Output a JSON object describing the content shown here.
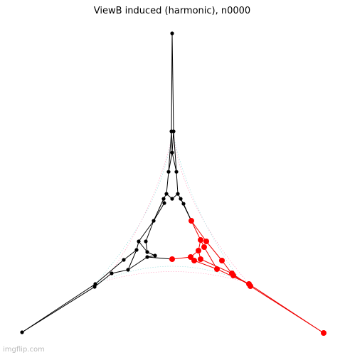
{
  "title": "ViewB induced (harmonic), n0000",
  "watermark": "imgflip.com"
}
